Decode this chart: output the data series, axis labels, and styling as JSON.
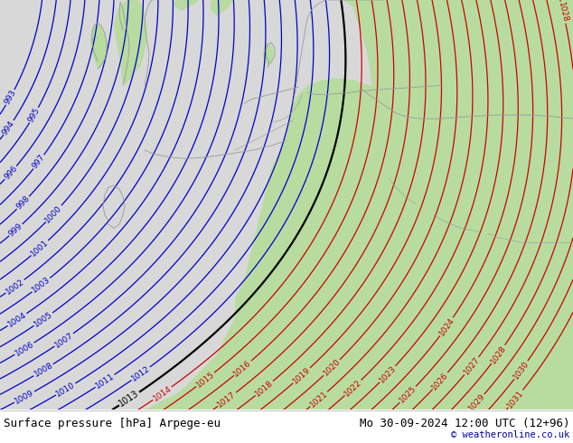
{
  "title_left": "Surface pressure [hPa] Arpege-eu",
  "title_right": "Mo 30-09-2024 12:00 UTC (12+96)",
  "copyright": "© weatheronline.co.uk",
  "land_color": "#b8dca0",
  "sea_color": "#d8d8d8",
  "fig_width": 6.34,
  "fig_height": 4.9,
  "dpi": 100,
  "blue_levels": [
    993,
    994,
    995,
    996,
    997,
    998,
    999,
    1000,
    1001,
    1002,
    1003,
    1004,
    1005,
    1006,
    1007,
    1008,
    1009,
    1010,
    1011,
    1012
  ],
  "black_levels": [
    1013
  ],
  "red_levels": [
    1014,
    1015,
    1016,
    1017,
    1018,
    1019,
    1020,
    1021,
    1022,
    1023,
    1024,
    1025,
    1026,
    1027,
    1028,
    1029,
    1030,
    1031
  ],
  "blue_color": "#0000cc",
  "red_color": "#cc0000",
  "black_color": "#000000",
  "coast_color": "#999999",
  "coast_lw": 0.6
}
